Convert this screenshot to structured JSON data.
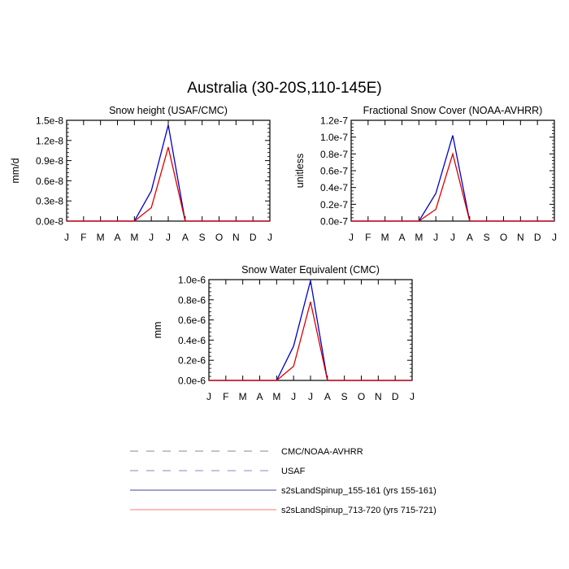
{
  "figure": {
    "title": "Australia (30-20S,110-145E)"
  },
  "chart_data": [
    {
      "type": "line",
      "title": "Snow height (USAF/CMC)",
      "ylabel": "mm/d",
      "xlabel": "",
      "categories": [
        "J",
        "F",
        "M",
        "A",
        "M",
        "J",
        "J",
        "A",
        "S",
        "O",
        "N",
        "D",
        "J"
      ],
      "yticks": [
        "0.0e-8",
        "0.3e-8",
        "0.6e-8",
        "0.9e-8",
        "1.2e-8",
        "1.5e-8"
      ],
      "ytick_values": [
        0,
        3e-09,
        6e-09,
        9e-09,
        1.2e-08,
        1.5e-08
      ],
      "ylim": [
        0,
        1.5e-08
      ],
      "series": [
        {
          "name": "USAF",
          "color": "#0000cc",
          "values": [
            0,
            0,
            0,
            0,
            0,
            4.5e-09,
            1.43e-08,
            0,
            0,
            0,
            0,
            0,
            0
          ]
        },
        {
          "name": "s2sLandSpinup_155-161 (yrs 155-161)",
          "color": "#dd0000",
          "values": [
            0,
            0,
            0,
            0,
            0,
            2e-09,
            1.1e-08,
            0,
            0,
            0,
            0,
            0,
            0
          ]
        }
      ]
    },
    {
      "type": "line",
      "title": "Fractional Snow Cover (NOAA-AVHRR)",
      "ylabel": "unitless",
      "xlabel": "",
      "categories": [
        "J",
        "F",
        "M",
        "A",
        "M",
        "J",
        "J",
        "A",
        "S",
        "O",
        "N",
        "D",
        "J"
      ],
      "yticks": [
        "0.0e-7",
        "0.2e-7",
        "0.4e-7",
        "0.6e-7",
        "0.8e-7",
        "1.0e-7",
        "1.2e-7"
      ],
      "ytick_values": [
        0,
        2e-08,
        4e-08,
        6e-08,
        8e-08,
        1e-07,
        1.2e-07
      ],
      "ylim": [
        0,
        1.2e-07
      ],
      "series": [
        {
          "name": "USAF",
          "color": "#0000cc",
          "values": [
            0,
            0,
            0,
            0,
            0,
            3.3e-08,
            1.02e-07,
            0,
            0,
            0,
            0,
            0,
            0
          ]
        },
        {
          "name": "s2sLandSpinup_155-161 (yrs 155-161)",
          "color": "#dd0000",
          "values": [
            0,
            0,
            0,
            0,
            0,
            1.4e-08,
            8e-08,
            0,
            0,
            0,
            0,
            0,
            0
          ]
        }
      ]
    },
    {
      "type": "line",
      "title": "Snow Water Equivalent (CMC)",
      "ylabel": "mm",
      "xlabel": "",
      "categories": [
        "J",
        "F",
        "M",
        "A",
        "M",
        "J",
        "J",
        "A",
        "S",
        "O",
        "N",
        "D",
        "J"
      ],
      "yticks": [
        "0.0e-6",
        "0.2e-6",
        "0.4e-6",
        "0.6e-6",
        "0.8e-6",
        "1.0e-6"
      ],
      "ytick_values": [
        0,
        2e-07,
        4e-07,
        6e-07,
        8e-07,
        1e-06
      ],
      "ylim": [
        0,
        1e-06
      ],
      "series": [
        {
          "name": "USAF",
          "color": "#0000cc",
          "values": [
            0,
            0,
            0,
            0,
            0,
            3.4e-07,
            9.9e-07,
            0,
            0,
            0,
            0,
            0,
            0
          ]
        },
        {
          "name": "s2sLandSpinup_155-161 (yrs 155-161)",
          "color": "#dd0000",
          "values": [
            0,
            0,
            0,
            0,
            0,
            1.4e-07,
            7.8e-07,
            0,
            0,
            0,
            0,
            0,
            0
          ]
        }
      ]
    }
  ],
  "legend": {
    "placement": "bottom",
    "items": [
      {
        "label": "CMC/NOAA-AVHRR",
        "color": "#888888",
        "style": "dashed"
      },
      {
        "label": "USAF",
        "color": "#8888bb",
        "style": "dashed"
      },
      {
        "label": "s2sLandSpinup_155-161 (yrs 155-161)",
        "color": "#4444aa",
        "style": "solid"
      },
      {
        "label": "s2sLandSpinup_713-720 (yrs 715-721)",
        "color": "#ff7777",
        "style": "solid"
      }
    ]
  }
}
